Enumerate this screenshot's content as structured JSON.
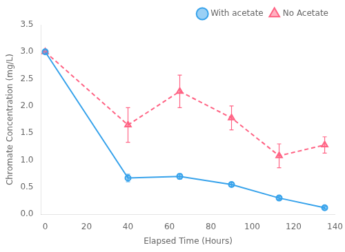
{
  "chart_data": {
    "type": "line",
    "xlabel": "Elapsed Time (Hours)",
    "ylabel": "Chromate Concentration (mg/L)",
    "x": [
      0,
      40,
      65,
      90,
      113,
      135
    ],
    "series": [
      {
        "name": "With acetate",
        "values": [
          3.0,
          0.67,
          0.7,
          0.55,
          0.3,
          0.12
        ],
        "yerr": [
          0.0,
          0.07,
          0.05,
          0.04,
          0.03,
          0.02
        ],
        "marker": "circle",
        "line_style": "solid"
      },
      {
        "name": "No Acetate",
        "values": [
          3.0,
          1.65,
          2.27,
          1.78,
          1.08,
          1.28
        ],
        "yerr": [
          0.0,
          0.32,
          0.3,
          0.22,
          0.22,
          0.15
        ],
        "marker": "triangle",
        "line_style": "dashed"
      }
    ],
    "xlim": [
      -2,
      140
    ],
    "xticks": [
      0,
      20,
      40,
      60,
      80,
      100,
      120,
      140
    ],
    "ylim": [
      0,
      3.5
    ],
    "yticks": [
      {
        "value": 0,
        "label": "0.0"
      },
      0.5,
      {
        "value": 1,
        "label": "1.0"
      },
      1.5,
      {
        "value": 2,
        "label": "2.0"
      },
      2.5,
      {
        "value": 3,
        "label": "3.0"
      },
      3.5
    ],
    "grid": false,
    "legend": "upper right"
  }
}
